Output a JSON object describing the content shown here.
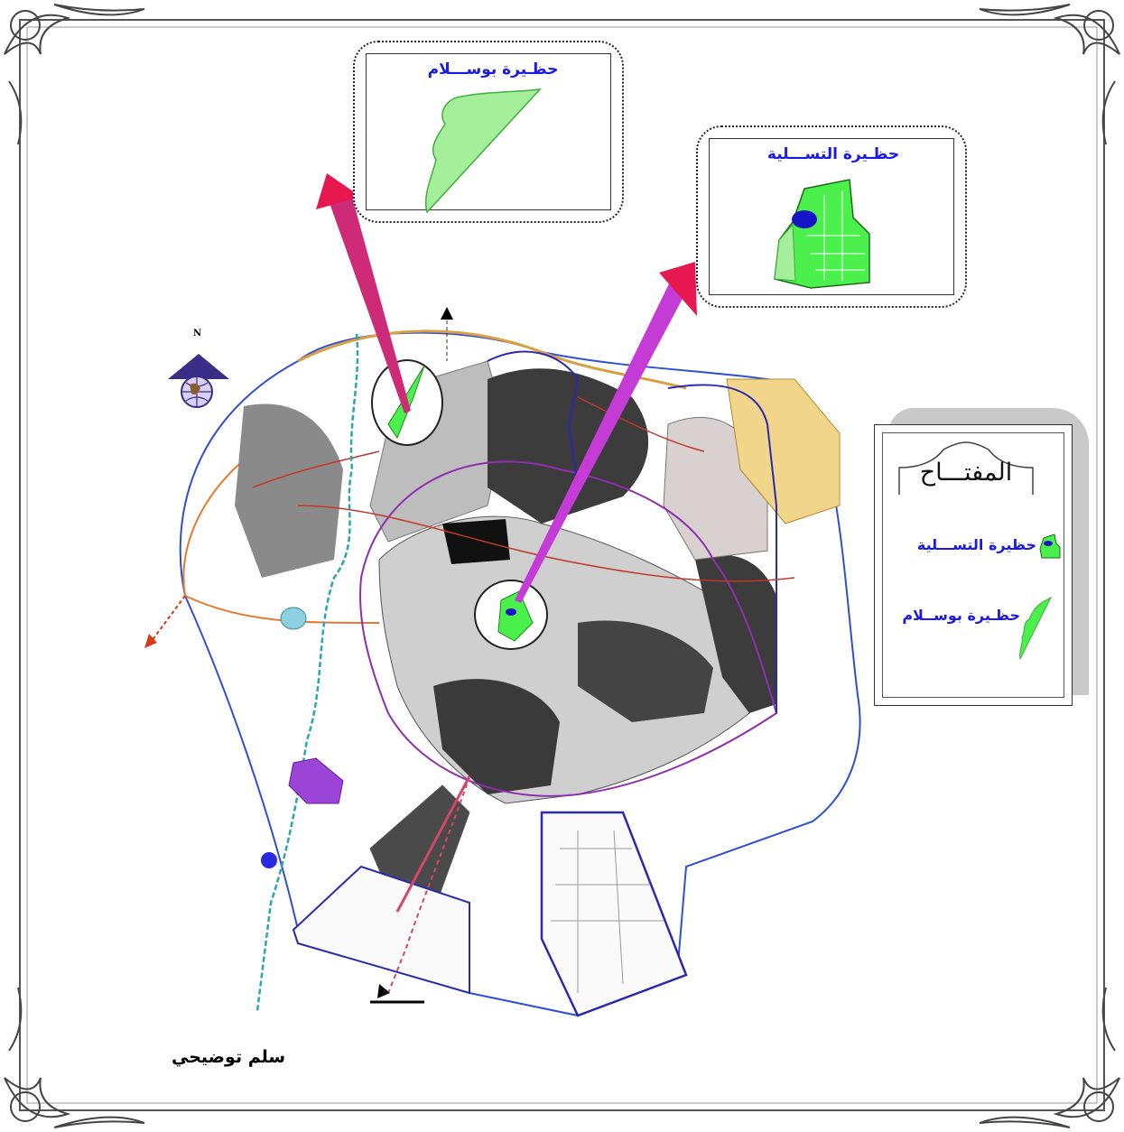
{
  "insets": {
    "bousalam": {
      "title": "حظـيرة بوســـلام"
    },
    "tasliya": {
      "title": "حظـيرة التســـلية"
    }
  },
  "legend": {
    "title": "المفتـــاح",
    "items": [
      {
        "label": "حظيرة التســـلية",
        "icon": "amusement-park-icon"
      },
      {
        "label": "حظـيرة بوســلام",
        "icon": "bousalam-park-icon"
      }
    ]
  },
  "north_label": "N",
  "scale_label": "سلم توضيحي",
  "colors": {
    "park_green": "#4cf04c",
    "lake_blue": "#1515c8",
    "arrow_red": "#e6184f",
    "arrow_magenta": "#c43bd6",
    "label_blue": "#1a1ae6",
    "urban_gray": "#3c3c3c",
    "boundary_blue": "#2a2ab0"
  }
}
